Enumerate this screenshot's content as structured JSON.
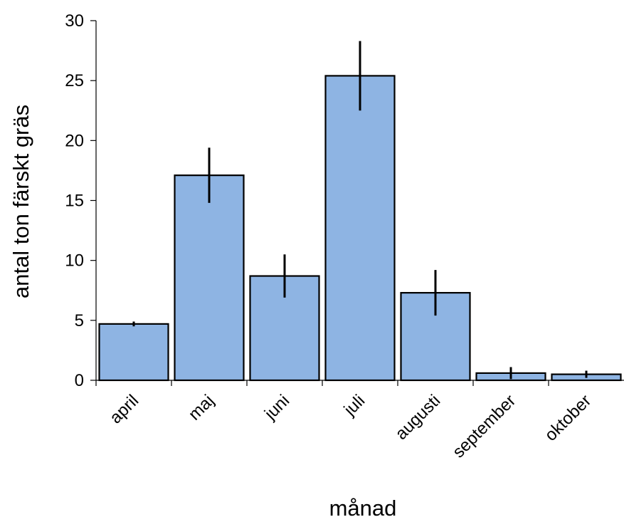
{
  "chart_data": {
    "type": "bar",
    "categories": [
      "april",
      "maj",
      "juni",
      "juli",
      "augusti",
      "september",
      "oktober"
    ],
    "values": [
      4.7,
      17.1,
      8.7,
      25.4,
      7.3,
      0.6,
      0.5
    ],
    "error": [
      0.2,
      2.3,
      1.8,
      2.9,
      1.9,
      0.5,
      0.3
    ],
    "title": "",
    "xlabel": "månad",
    "ylabel": "antal ton färskt gräs",
    "ylim": [
      0,
      30
    ],
    "yticks": [
      "0",
      "5",
      "10",
      "15",
      "20",
      "25",
      "30"
    ],
    "grid": false,
    "legend": "none",
    "bar_color": "#8eb4e3",
    "edge_color": "#000000"
  }
}
